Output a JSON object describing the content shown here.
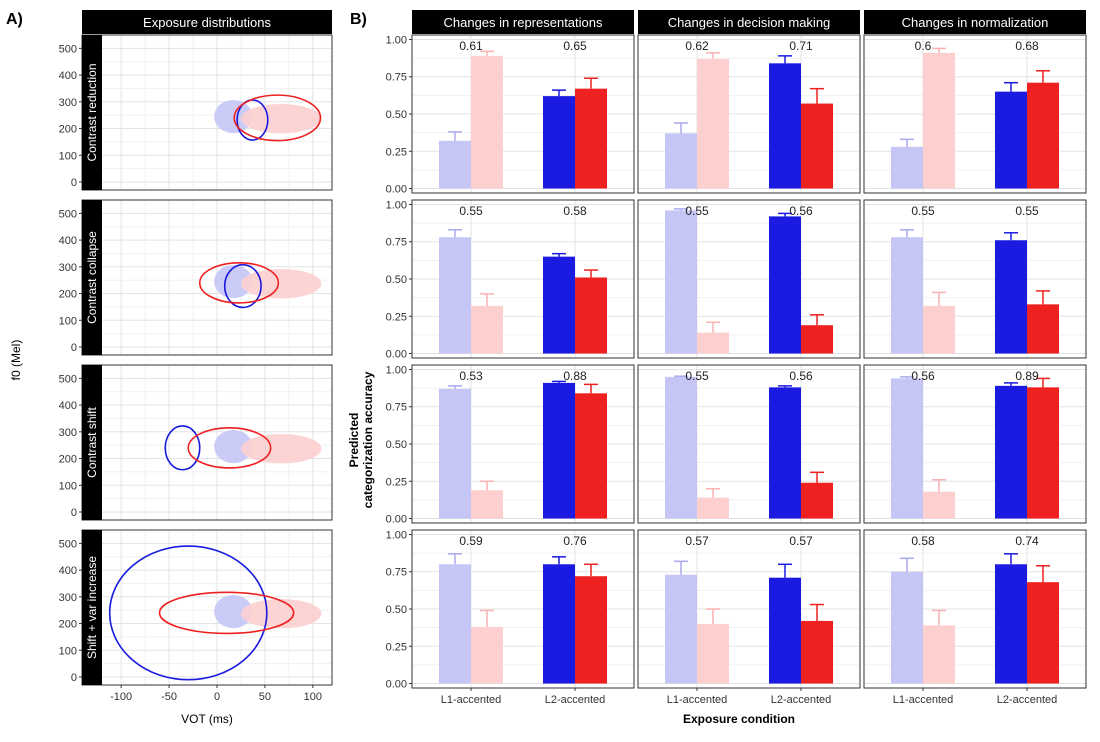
{
  "panel_tags": {
    "a": "A)",
    "b": "B)"
  },
  "left": {
    "strip_title": "Exposure distributions",
    "ylabel": "f0 (Mel)",
    "xlabel": "VOT (ms)"
  },
  "right": {
    "ylabel_line1": "Predicted",
    "ylabel_line2": "categorization accuracy",
    "xlabel": "Exposure condition"
  },
  "chart_data": [
    {
      "type": "scatter",
      "title": "Exposure distributions",
      "xlabel": "VOT (ms)",
      "ylabel": "f0 (Mel)",
      "xlim": [
        -120,
        120
      ],
      "ylim": [
        -30,
        550
      ],
      "xticks": [
        "-100",
        "-50",
        "0",
        "50",
        "100"
      ],
      "yticks": [
        "0",
        "100",
        "200",
        "300",
        "400",
        "500"
      ],
      "grid": true,
      "colors": {
        "l1": "#c5c5f6",
        "l2": "#fdcfcf",
        "blue": "#1a1ae0",
        "red": "#ee2020"
      },
      "background_ellipses": [
        {
          "name": "L1 /b/",
          "color": "#c5c5f6",
          "cx": 17,
          "cy": 245,
          "rx": 20,
          "ry": 62
        },
        {
          "name": "L1 /p/",
          "color": "#fdcfcf",
          "cx": 67,
          "cy": 237,
          "rx": 42,
          "ry": 55
        }
      ],
      "rows": [
        {
          "label": "Contrast reduction",
          "ellipses": [
            {
              "color": "#1a1ae0",
              "cx": 37,
              "cy": 232,
              "rx": 16,
              "ry": 75
            },
            {
              "color": "#ee2020",
              "cx": 63,
              "cy": 240,
              "rx": 45,
              "ry": 85
            }
          ]
        },
        {
          "label": "Contrast collapse",
          "ellipses": [
            {
              "color": "#1a1ae0",
              "cx": 27,
              "cy": 228,
              "rx": 19,
              "ry": 80
            },
            {
              "color": "#ee2020",
              "cx": 23,
              "cy": 240,
              "rx": 41,
              "ry": 75
            }
          ]
        },
        {
          "label": "Contrast shift",
          "ellipses": [
            {
              "color": "#1a1ae0",
              "cx": -36,
              "cy": 240,
              "rx": 18,
              "ry": 82
            },
            {
              "color": "#ee2020",
              "cx": 13,
              "cy": 240,
              "rx": 43,
              "ry": 75
            }
          ]
        },
        {
          "label": "Shift + var increase",
          "ellipses": [
            {
              "color": "#1a1ae0",
              "cx": -30,
              "cy": 240,
              "rx": 82,
              "ry": 250
            },
            {
              "color": "#ee2020",
              "cx": 10,
              "cy": 240,
              "rx": 70,
              "ry": 77
            }
          ]
        }
      ]
    },
    {
      "type": "bar",
      "xlabel": "Exposure condition",
      "ylabel": "Predicted categorization accuracy",
      "ylim": [
        -0.03,
        1.03
      ],
      "yticks": [
        "0.00",
        "0.25",
        "0.50",
        "0.75",
        "1.00"
      ],
      "categories": [
        "L1-accented",
        "L2-accented"
      ],
      "grid": true,
      "bar_colors": [
        [
          "#c5c5f6",
          "#fdcfcf"
        ],
        [
          "#1a1ae0",
          "#ee2020"
        ]
      ],
      "error_colors": [
        [
          "#a9a9ef",
          "#fbb1b1"
        ],
        [
          "#1a1ae0",
          "#ee2020"
        ]
      ],
      "columns": [
        "Changes in representations",
        "Changes in decision making",
        "Changes in normalization"
      ],
      "panels": [
        [
          {
            "labels": [
              "0.61",
              "0.65"
            ],
            "values": [
              [
                0.32,
                0.89
              ],
              [
                0.62,
                0.67
              ]
            ],
            "errors": [
              [
                0.06,
                0.03
              ],
              [
                0.04,
                0.07
              ]
            ]
          },
          {
            "labels": [
              "0.62",
              "0.71"
            ],
            "values": [
              [
                0.37,
                0.87
              ],
              [
                0.84,
                0.57
              ]
            ],
            "errors": [
              [
                0.07,
                0.04
              ],
              [
                0.05,
                0.1
              ]
            ]
          },
          {
            "labels": [
              "0.6",
              "0.68"
            ],
            "values": [
              [
                0.28,
                0.91
              ],
              [
                0.65,
                0.71
              ]
            ],
            "errors": [
              [
                0.05,
                0.03
              ],
              [
                0.06,
                0.08
              ]
            ]
          }
        ],
        [
          {
            "labels": [
              "0.55",
              "0.58"
            ],
            "values": [
              [
                0.78,
                0.32
              ],
              [
                0.65,
                0.51
              ]
            ],
            "errors": [
              [
                0.05,
                0.08
              ],
              [
                0.02,
                0.05
              ]
            ]
          },
          {
            "labels": [
              "0.55",
              "0.56"
            ],
            "values": [
              [
                0.96,
                0.14
              ],
              [
                0.92,
                0.19
              ]
            ],
            "errors": [
              [
                0.01,
                0.07
              ],
              [
                0.02,
                0.07
              ]
            ]
          },
          {
            "labels": [
              "0.55",
              "0.55"
            ],
            "values": [
              [
                0.78,
                0.32
              ],
              [
                0.76,
                0.33
              ]
            ],
            "errors": [
              [
                0.05,
                0.09
              ],
              [
                0.05,
                0.09
              ]
            ]
          }
        ],
        [
          {
            "labels": [
              "0.53",
              "0.88"
            ],
            "values": [
              [
                0.87,
                0.19
              ],
              [
                0.91,
                0.84
              ]
            ],
            "errors": [
              [
                0.02,
                0.06
              ],
              [
                0.01,
                0.06
              ]
            ]
          },
          {
            "labels": [
              "0.55",
              "0.56"
            ],
            "values": [
              [
                0.95,
                0.14
              ],
              [
                0.88,
                0.24
              ]
            ],
            "errors": [
              [
                0.005,
                0.06
              ],
              [
                0.01,
                0.07
              ]
            ]
          },
          {
            "labels": [
              "0.56",
              "0.89"
            ],
            "values": [
              [
                0.94,
                0.18
              ],
              [
                0.89,
                0.88
              ]
            ],
            "errors": [
              [
                0.01,
                0.08
              ],
              [
                0.02,
                0.06
              ]
            ]
          }
        ],
        [
          {
            "labels": [
              "0.59",
              "0.76"
            ],
            "values": [
              [
                0.8,
                0.38
              ],
              [
                0.8,
                0.72
              ]
            ],
            "errors": [
              [
                0.07,
                0.11
              ],
              [
                0.05,
                0.08
              ]
            ]
          },
          {
            "labels": [
              "0.57",
              "0.57"
            ],
            "values": [
              [
                0.73,
                0.4
              ],
              [
                0.71,
                0.42
              ]
            ],
            "errors": [
              [
                0.09,
                0.1
              ],
              [
                0.09,
                0.11
              ]
            ]
          },
          {
            "labels": [
              "0.58",
              "0.74"
            ],
            "values": [
              [
                0.75,
                0.39
              ],
              [
                0.8,
                0.68
              ]
            ],
            "errors": [
              [
                0.09,
                0.1
              ],
              [
                0.07,
                0.11
              ]
            ]
          }
        ]
      ]
    }
  ]
}
